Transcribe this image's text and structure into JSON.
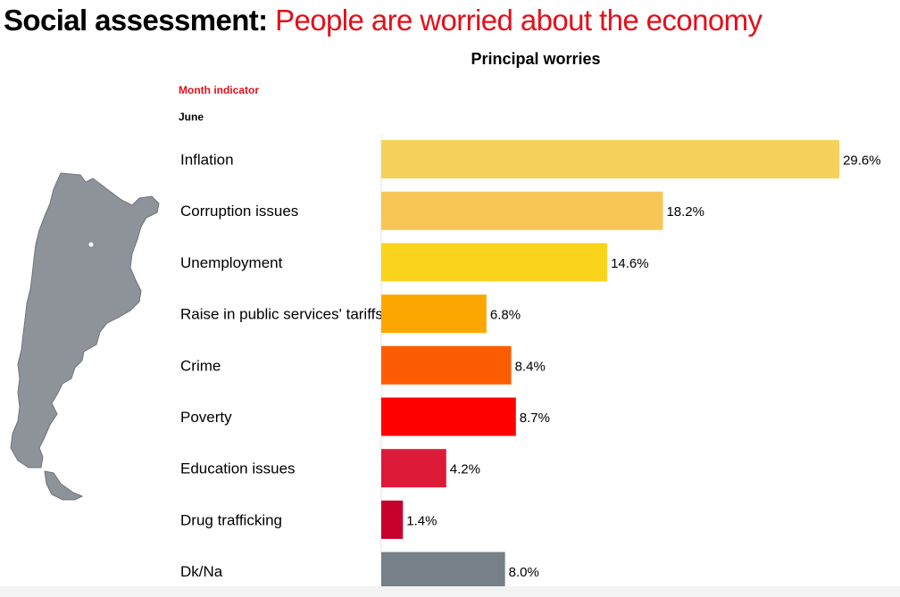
{
  "header": {
    "title_lead": "Social assessment:",
    "title_rest": "People are worried about the economy"
  },
  "month": {
    "label": "Month indicator",
    "value": "June"
  },
  "colors": {
    "title_red": "#e2101b",
    "map_fill": "#8e939a"
  },
  "chart_data": {
    "type": "bar",
    "orientation": "horizontal",
    "title": "Principal worries",
    "xlabel": "",
    "ylabel": "",
    "xlim": [
      0,
      30
    ],
    "grid": false,
    "legend": "none",
    "categories": [
      "Inflation",
      "Corruption issues",
      "Unemployment",
      "Raise in public services' tariffs",
      "Crime",
      "Poverty",
      "Education issues",
      "Drug trafficking",
      "Dk/Na"
    ],
    "values": [
      29.6,
      18.2,
      14.6,
      6.8,
      8.4,
      8.7,
      4.2,
      1.4,
      8.0
    ],
    "value_labels": [
      "29.6%",
      "18.2%",
      "14.6%",
      "6.8%",
      "8.4%",
      "8.7%",
      "4.2%",
      "1.4%",
      "8.0%"
    ],
    "bar_colors": [
      "#f5d25c",
      "#f7c555",
      "#fad41c",
      "#fca701",
      "#fd5d02",
      "#fe0000",
      "#de1a39",
      "#c7002c",
      "#778089"
    ]
  }
}
